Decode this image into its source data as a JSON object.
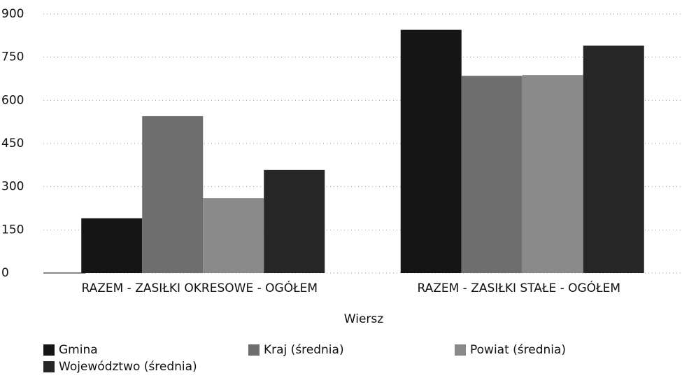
{
  "chart_data": {
    "type": "bar",
    "categories": [
      "RAZEM -  ZASIŁKI OKRESOWE - OGÓŁEM",
      "RAZEM -  ZASIŁKI STAŁE - OGÓŁEM"
    ],
    "x_label": "Wiersz",
    "series": [
      {
        "name": "Gmina",
        "color": "#151515",
        "values": [
          190,
          845
        ]
      },
      {
        "name": "Kraj (średnia)",
        "color": "#6e6e6e",
        "values": [
          545,
          685
        ]
      },
      {
        "name": "Powiat (średnia)",
        "color": "#8a8a8a",
        "values": [
          260,
          688
        ]
      },
      {
        "name": "Województwo (średnia)",
        "color": "#262626",
        "values": [
          358,
          790
        ]
      }
    ],
    "ylim": [
      0,
      900
    ],
    "yticks": [
      0,
      150,
      300,
      450,
      600,
      750,
      900
    ],
    "grid": true,
    "legend": "bottom"
  }
}
